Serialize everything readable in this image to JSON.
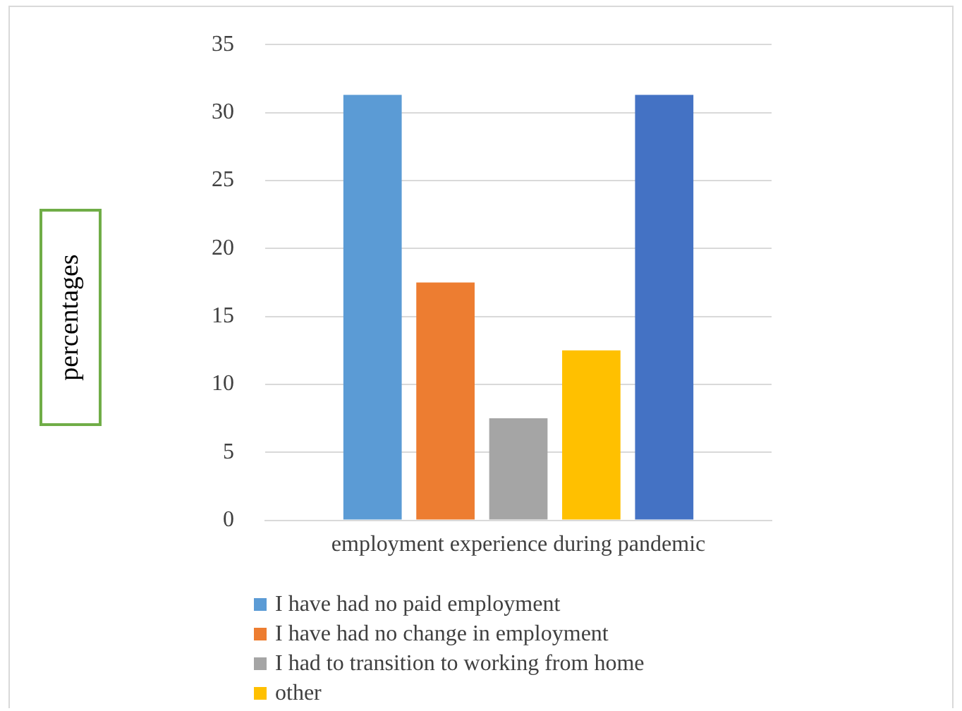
{
  "chart_data": {
    "type": "bar",
    "ylabel": "percentages",
    "categories": [
      "employment experience during pandemic"
    ],
    "series": [
      {
        "name": "I have had no paid employment",
        "color": "#5b9bd5",
        "values": [
          31.3
        ]
      },
      {
        "name": "I have had no change in employment",
        "color": "#ed7d31",
        "values": [
          17.5
        ]
      },
      {
        "name": "I had to transition to working from home",
        "color": "#a5a5a5",
        "values": [
          7.5
        ]
      },
      {
        "name": "other",
        "color": "#ffc000",
        "values": [
          12.5
        ]
      },
      {
        "color": "#4472c4",
        "values": [
          31.3
        ]
      }
    ],
    "ylim": [
      0,
      35
    ],
    "yticks": [
      0,
      5,
      10,
      15,
      20,
      25,
      30,
      35
    ],
    "grid": "y",
    "legend": "bottom"
  }
}
